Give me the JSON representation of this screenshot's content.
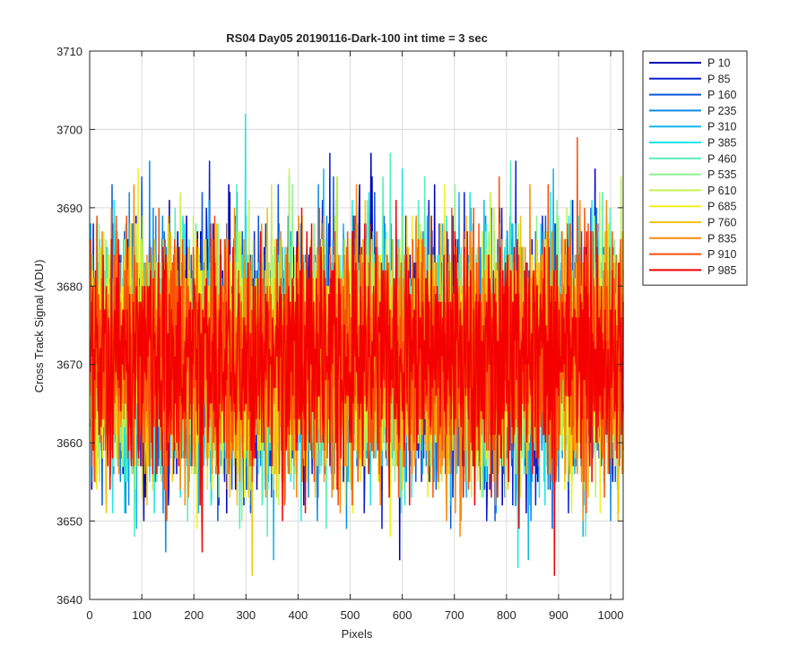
{
  "chart_data": {
    "type": "line",
    "title": "RS04 Day05 20190116-Dark-100 int time = 3 sec",
    "xlabel": "Pixels",
    "ylabel": "Cross Track Signal (ADU)",
    "xlim": [
      0,
      1024
    ],
    "ylim": [
      3640,
      3710
    ],
    "xticks": [
      0,
      100,
      200,
      300,
      400,
      500,
      600,
      700,
      800,
      900,
      1000
    ],
    "yticks": [
      3640,
      3650,
      3660,
      3670,
      3680,
      3690,
      3700,
      3710
    ],
    "grid": true,
    "legend_position": "outside-top-right",
    "points_per_series": 1024,
    "noise_model": {
      "mean": 3671,
      "std_dev": 7.5,
      "observed_min": 3643,
      "observed_max": 3702
    },
    "series": [
      {
        "name": "P 10",
        "color": "#0000b4",
        "seed": 11
      },
      {
        "name": "P 85",
        "color": "#0a1fd0",
        "seed": 23
      },
      {
        "name": "P 160",
        "color": "#0a58dc",
        "seed": 37
      },
      {
        "name": "P 235",
        "color": "#0a8ae8",
        "seed": 41
      },
      {
        "name": "P 310",
        "color": "#12b4f0",
        "seed": 53
      },
      {
        "name": "P 385",
        "color": "#1ee6ea",
        "seed": 67
      },
      {
        "name": "P 460",
        "color": "#56eeb8",
        "seed": 71
      },
      {
        "name": "P 535",
        "color": "#8ef290",
        "seed": 83
      },
      {
        "name": "P 610",
        "color": "#c2f44a",
        "seed": 97
      },
      {
        "name": "P 685",
        "color": "#f0f01c",
        "seed": 101
      },
      {
        "name": "P 760",
        "color": "#f4c212",
        "seed": 113
      },
      {
        "name": "P 835",
        "color": "#f88c0c",
        "seed": 127
      },
      {
        "name": "P 910",
        "color": "#f85008",
        "seed": 131
      },
      {
        "name": "P 985",
        "color": "#f40000",
        "seed": 139
      }
    ]
  }
}
